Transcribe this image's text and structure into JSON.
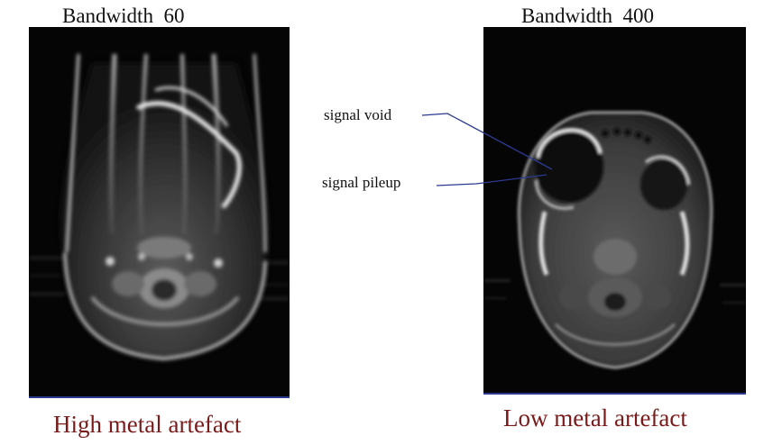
{
  "left_panel": {
    "title": "Bandwidth  60",
    "caption": "High metal artefact"
  },
  "right_panel": {
    "title": "Bandwidth  400",
    "caption": "Low metal artefact"
  },
  "annotations": {
    "signal_void": "signal void",
    "signal_pileup": "signal pileup",
    "line_color": "#2b3a8f"
  },
  "colors": {
    "caption_text": "#7a1a1a",
    "scan_background": "#050505",
    "image_underline": "#2b3a8f"
  }
}
